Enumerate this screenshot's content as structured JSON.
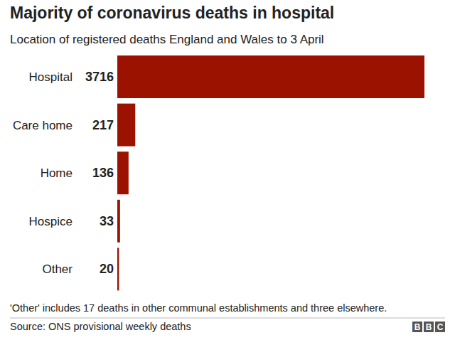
{
  "chart_data": {
    "type": "bar",
    "orientation": "horizontal",
    "title": "Majority of coronavirus deaths in hospital",
    "subtitle": "Location of registered deaths England and Wales to 3 April",
    "categories": [
      "Hospital",
      "Care home",
      "Home",
      "Hospice",
      "Other"
    ],
    "values": [
      3716,
      217,
      136,
      33,
      20
    ],
    "color": "#9b1200",
    "xlim": [
      0,
      3716
    ],
    "data_labels": true,
    "tick_labels": false,
    "grid": false,
    "footnote": "'Other' includes 17 deaths in other communal establishments and three elsewhere.",
    "source": "Source: ONS provisional weekly deaths",
    "branding": "BBC"
  }
}
